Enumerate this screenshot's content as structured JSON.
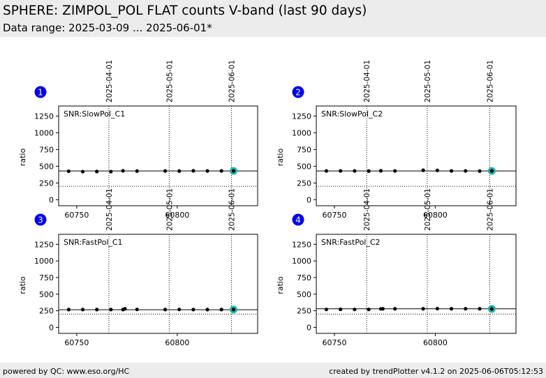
{
  "header": {
    "title": "SPHERE: ZIMPOL_POL FLAT counts V-band (last 90 days)",
    "subtitle": "Data range: 2025-03-09 ... 2025-06-01*"
  },
  "footer": {
    "left": "powered by QC: www.eso.org/HC",
    "right": "created by trendPlotter v4.1.2 on 2025-06-06T05:12:53"
  },
  "colors": {
    "point": "#000000",
    "highlight": "#20b2aa",
    "marker": "#0000ee",
    "header_bg": "#ececec"
  },
  "chart_data": [
    {
      "type": "scatter",
      "marker_label": "1",
      "label": "SNR:SlowPol_C1",
      "ylabel": "ratio",
      "xlim": [
        60741,
        60840
      ],
      "ylim": [
        -90,
        1400
      ],
      "xticks": [
        60750,
        60800
      ],
      "yticks": [
        0,
        250,
        500,
        750,
        1000,
        1250
      ],
      "date_lines": [
        {
          "x": 60766,
          "label": "2025-04-01"
        },
        {
          "x": 60796,
          "label": "2025-05-01"
        },
        {
          "x": 60827,
          "label": "2025-06-01"
        }
      ],
      "reference_lines": [
        {
          "y": 430,
          "style": "solid"
        },
        {
          "y": 200,
          "style": "dotted"
        }
      ],
      "x": [
        60746,
        60753,
        60760,
        60767,
        60773,
        60780,
        60794,
        60801,
        60808,
        60815,
        60822,
        60828
      ],
      "y": [
        425,
        420,
        422,
        420,
        432,
        428,
        430,
        428,
        432,
        430,
        430,
        430
      ],
      "highlight": {
        "x": 60828,
        "y": 430
      }
    },
    {
      "type": "scatter",
      "marker_label": "2",
      "label": "SNR:SlowPol_C2",
      "ylabel": "ratio",
      "xlim": [
        60741,
        60840
      ],
      "ylim": [
        -90,
        1400
      ],
      "xticks": [
        60750,
        60800
      ],
      "yticks": [
        0,
        250,
        500,
        750,
        1000,
        1250
      ],
      "date_lines": [
        {
          "x": 60766,
          "label": "2025-04-01"
        },
        {
          "x": 60796,
          "label": "2025-05-01"
        },
        {
          "x": 60827,
          "label": "2025-06-01"
        }
      ],
      "reference_lines": [
        {
          "y": 430,
          "style": "solid"
        },
        {
          "y": 200,
          "style": "dotted"
        }
      ],
      "x": [
        60746,
        60753,
        60760,
        60767,
        60773,
        60780,
        60794,
        60801,
        60808,
        60815,
        60822,
        60828
      ],
      "y": [
        430,
        430,
        430,
        428,
        432,
        430,
        440,
        438,
        430,
        430,
        428,
        430
      ],
      "highlight": {
        "x": 60828,
        "y": 430
      }
    },
    {
      "type": "scatter",
      "marker_label": "3",
      "label": "SNR:FastPol_C1",
      "ylabel": "ratio",
      "xlim": [
        60741,
        60840
      ],
      "ylim": [
        -90,
        1400
      ],
      "xticks": [
        60750,
        60800
      ],
      "yticks": [
        0,
        250,
        500,
        750,
        1000,
        1250
      ],
      "date_lines": [
        {
          "x": 60766,
          "label": "2025-04-01"
        },
        {
          "x": 60796,
          "label": "2025-05-01"
        },
        {
          "x": 60827,
          "label": "2025-06-01"
        }
      ],
      "reference_lines": [
        {
          "y": 265,
          "style": "solid"
        },
        {
          "y": 200,
          "style": "dotted"
        }
      ],
      "x": [
        60746,
        60753,
        60760,
        60767,
        60773,
        60774,
        60780,
        60794,
        60801,
        60808,
        60815,
        60822,
        60828
      ],
      "y": [
        268,
        268,
        268,
        268,
        268,
        280,
        270,
        268,
        270,
        268,
        268,
        268,
        268
      ],
      "highlight": {
        "x": 60828,
        "y": 268
      }
    },
    {
      "type": "scatter",
      "marker_label": "4",
      "label": "SNR:FastPol_C2",
      "ylabel": "ratio",
      "xlim": [
        60741,
        60840
      ],
      "ylim": [
        -90,
        1400
      ],
      "xticks": [
        60750,
        60800
      ],
      "yticks": [
        0,
        250,
        500,
        750,
        1000,
        1250
      ],
      "date_lines": [
        {
          "x": 60766,
          "label": "2025-04-01"
        },
        {
          "x": 60796,
          "label": "2025-05-01"
        },
        {
          "x": 60827,
          "label": "2025-06-01"
        }
      ],
      "reference_lines": [
        {
          "y": 280,
          "style": "solid"
        },
        {
          "y": 200,
          "style": "dotted"
        }
      ],
      "x": [
        60746,
        60753,
        60760,
        60767,
        60773,
        60774,
        60780,
        60794,
        60801,
        60808,
        60815,
        60822,
        60828
      ],
      "y": [
        270,
        272,
        270,
        270,
        278,
        280,
        280,
        280,
        282,
        280,
        280,
        280,
        278
      ],
      "highlight": {
        "x": 60828,
        "y": 278
      }
    }
  ]
}
